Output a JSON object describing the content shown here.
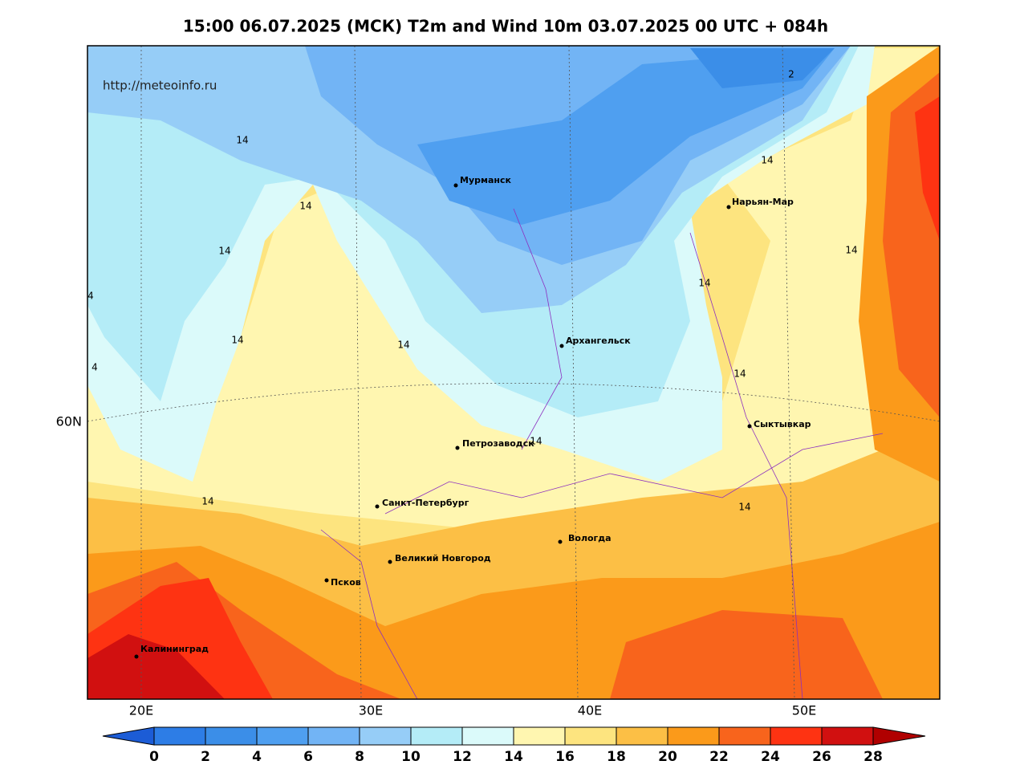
{
  "title": "15:00 06.07.2025 (МСК) T2m and Wind 10m 03.07.2025 00 UTC + 084h",
  "watermark": "http://meteoinfo.ru",
  "lat_labels": [
    "60N"
  ],
  "lon_labels": [
    "20E",
    "30E",
    "40E",
    "50E"
  ],
  "cities": [
    "Мурманск",
    "Нарьян-Мар",
    "Архангельск",
    "Сыктывкар",
    "Петрозаводск",
    "Санкт-Петербург",
    "Вологда",
    "Великий Новгород",
    "Псков",
    "Калининград"
  ],
  "contour_labels": [
    14,
    14,
    14,
    14,
    14,
    14,
    14,
    14,
    14,
    14,
    14,
    14,
    2,
    4,
    4
  ],
  "colorbar": {
    "ticks": [
      0,
      2,
      4,
      6,
      8,
      10,
      12,
      14,
      16,
      18,
      20,
      22,
      24,
      26,
      28
    ],
    "colors": [
      "#1c5cd6",
      "#2d7de6",
      "#3b8ee8",
      "#4f9ff0",
      "#72b4f5",
      "#96cdf7",
      "#b4ecf7",
      "#dbfafa",
      "#fff6b0",
      "#fde47f",
      "#fcbf45",
      "#fb9a1a",
      "#f8641c",
      "#fe3312",
      "#d11010",
      "#b00000"
    ]
  }
}
